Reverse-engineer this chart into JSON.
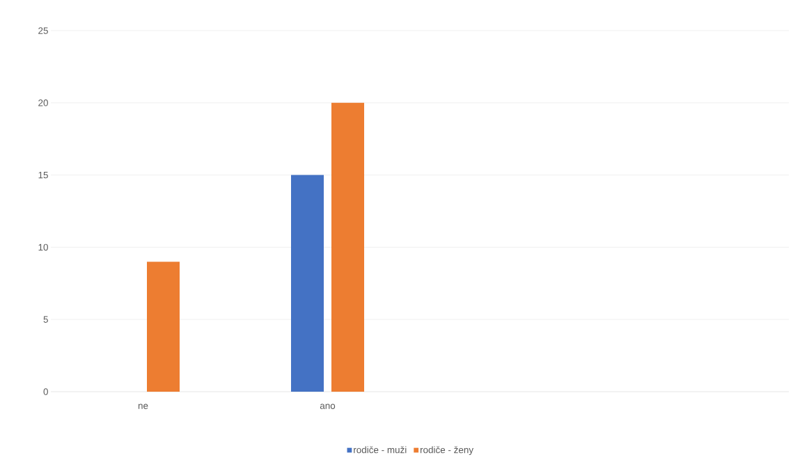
{
  "chart_data": {
    "type": "bar",
    "categories": [
      "ne",
      "ano",
      null,
      null
    ],
    "series": [
      {
        "name": "rodiče - muži",
        "color": "#4472c4",
        "values": [
          null,
          15,
          null,
          null
        ]
      },
      {
        "name": "rodiče - ženy",
        "color": "#ed7d31",
        "values": [
          9,
          20,
          null,
          null
        ]
      }
    ],
    "ylim": [
      0,
      25
    ],
    "yticks": [
      0,
      5,
      10,
      15,
      20,
      25
    ],
    "grid": "y",
    "legend": "bottom"
  }
}
